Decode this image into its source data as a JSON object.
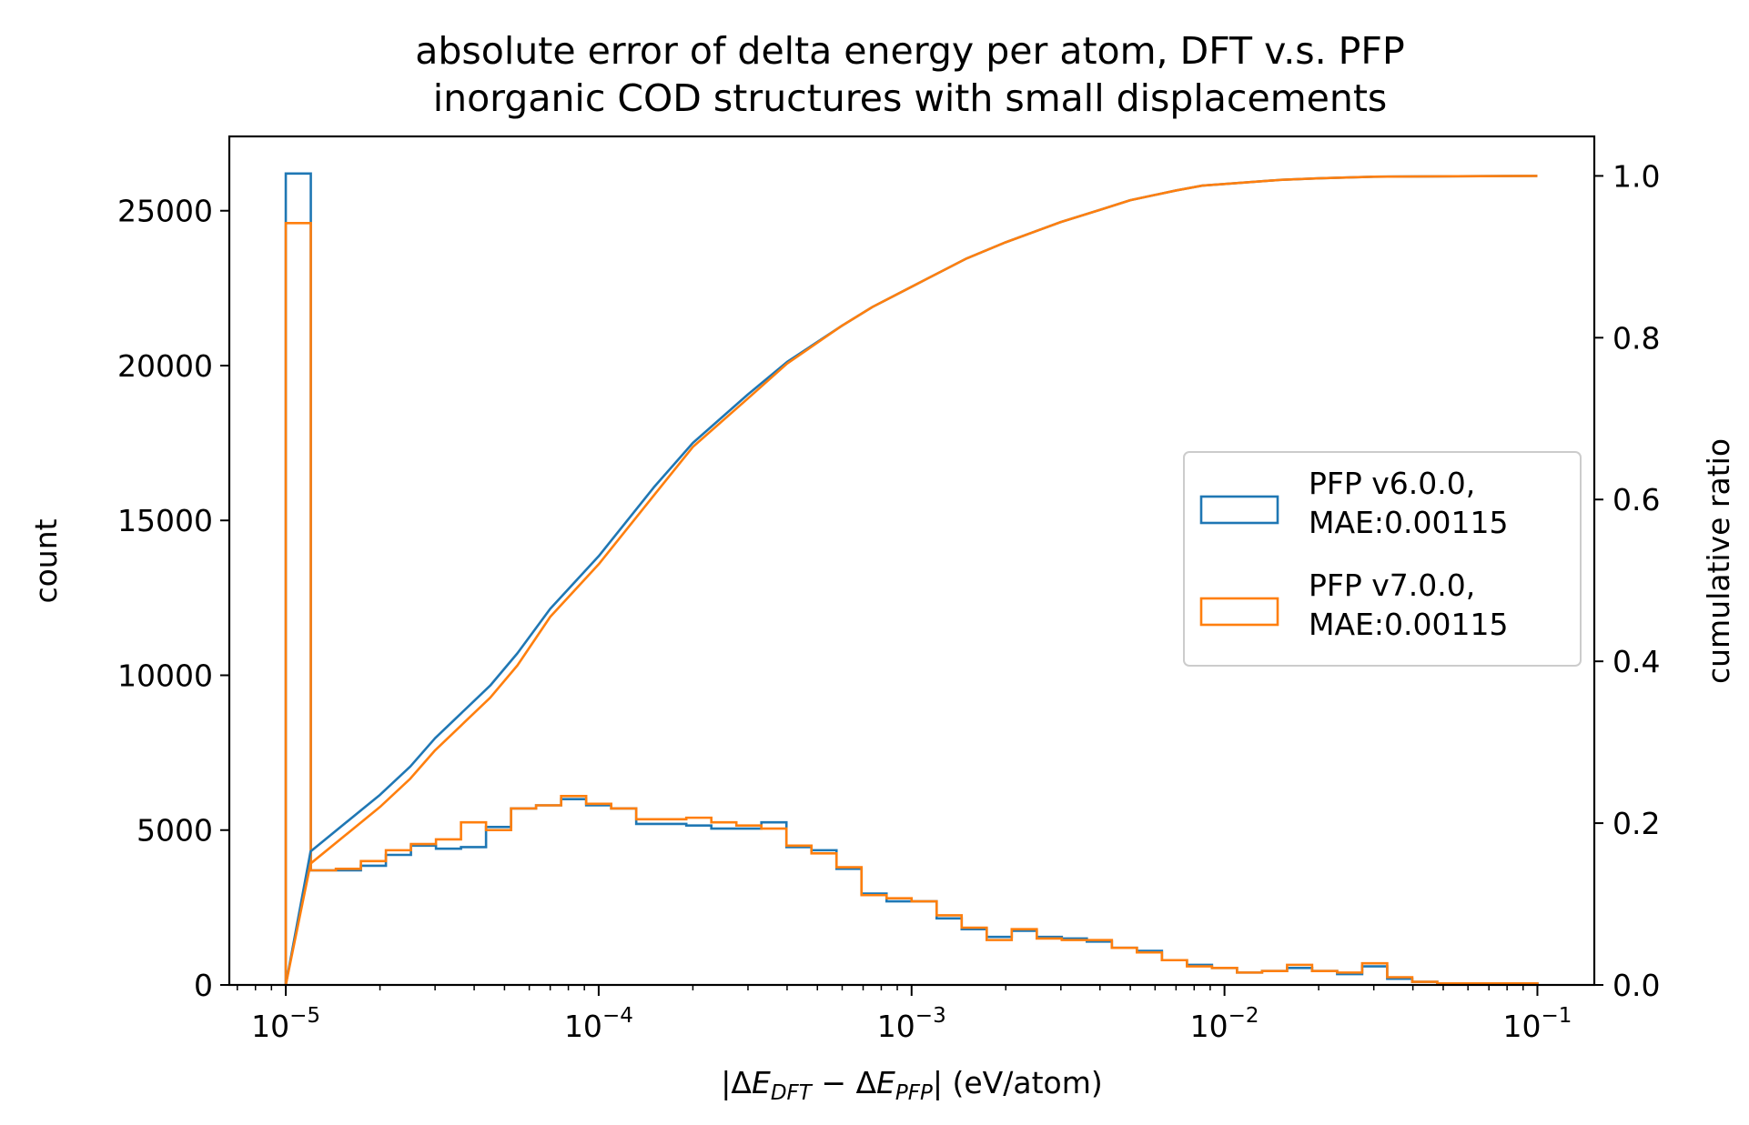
{
  "chart_data": {
    "type": "histogram",
    "title": "absolute error of delta energy per atom, DFT v.s. PFP",
    "subtitle": "inorganic COD structures with small displacements",
    "xlabel": "|ΔE_DFT − ΔE_PFP| (eV/atom)",
    "xlabel_parts": {
      "open": "|Δ",
      "e1": "E",
      "sub1": "DFT",
      "minus": " − Δ",
      "e2": "E",
      "sub2": "PFP",
      "close": "| (eV/atom)"
    },
    "ylabel_left": "count",
    "ylabel_right": "cumulative ratio",
    "xscale": "log",
    "xlim": [
      6.6e-06,
      0.152
    ],
    "ylim_left": [
      0,
      27400
    ],
    "ylim_right": [
      0,
      1.0488
    ],
    "x_ticks": [
      {
        "value": 1e-05,
        "base": "10",
        "exp": "−5"
      },
      {
        "value": 0.0001,
        "base": "10",
        "exp": "−4"
      },
      {
        "value": 0.001,
        "base": "10",
        "exp": "−3"
      },
      {
        "value": 0.01,
        "base": "10",
        "exp": "−2"
      },
      {
        "value": 0.1,
        "base": "10",
        "exp": "−1"
      }
    ],
    "y_ticks_left": [
      {
        "value": 0,
        "label": "0"
      },
      {
        "value": 5000,
        "label": "5000"
      },
      {
        "value": 10000,
        "label": "10000"
      },
      {
        "value": 15000,
        "label": "15000"
      },
      {
        "value": 20000,
        "label": "20000"
      },
      {
        "value": 25000,
        "label": "25000"
      }
    ],
    "y_ticks_right": [
      {
        "value": 0,
        "label": "0.0"
      },
      {
        "value": 0.2,
        "label": "0.2"
      },
      {
        "value": 0.4,
        "label": "0.4"
      },
      {
        "value": 0.6,
        "label": "0.6"
      },
      {
        "value": 0.8,
        "label": "0.8"
      },
      {
        "value": 1.0,
        "label": "1.0"
      }
    ],
    "legend": {
      "location": "center-right",
      "entries": [
        {
          "name": "PFP v6.0.0,",
          "mae": "MAE:0.00115",
          "color": "#1f77b4"
        },
        {
          "name": "PFP v7.0.0,",
          "mae": "MAE:0.00115",
          "color": "#ff7f0e"
        }
      ]
    },
    "bins": {
      "log10_start": -5,
      "log10_end": -1,
      "count": 50
    },
    "series": [
      {
        "name": "PFP v6.0.0",
        "color": "#1f77b4",
        "counts": [
          26200,
          3700,
          3700,
          3850,
          4200,
          4500,
          4400,
          4450,
          5100,
          5700,
          5800,
          6000,
          5800,
          5700,
          5200,
          5200,
          5150,
          5050,
          5050,
          5250,
          4450,
          4350,
          3750,
          2950,
          2700,
          2700,
          2150,
          1800,
          1550,
          1750,
          1550,
          1500,
          1400,
          1200,
          1100,
          800,
          650,
          550,
          400,
          450,
          550,
          450,
          350,
          600,
          200,
          100,
          50,
          50,
          50,
          50
        ],
        "cumulative_x": [
          1e-05,
          1.2e-05,
          2e-05,
          2.5e-05,
          3e-05,
          4.5e-05,
          5.5e-05,
          7e-05,
          0.0001,
          0.00015,
          0.0002,
          0.0003,
          0.0004,
          0.0006,
          0.00075,
          0.001,
          0.0015,
          0.002,
          0.003,
          0.004,
          0.005,
          0.007,
          0.0085,
          0.01,
          0.015,
          0.02,
          0.03,
          0.1
        ],
        "cumulative_y": [
          0.0,
          0.165,
          0.235,
          0.27,
          0.305,
          0.37,
          0.41,
          0.465,
          0.53,
          0.615,
          0.67,
          0.73,
          0.77,
          0.815,
          0.838,
          0.863,
          0.898,
          0.918,
          0.943,
          0.958,
          0.97,
          0.982,
          0.988,
          0.99,
          0.995,
          0.997,
          0.999,
          1.0
        ]
      },
      {
        "name": "PFP v7.0.0",
        "color": "#ff7f0e",
        "counts": [
          24600,
          3700,
          3750,
          4000,
          4350,
          4550,
          4700,
          5250,
          5000,
          5700,
          5800,
          6100,
          5850,
          5700,
          5350,
          5350,
          5400,
          5250,
          5150,
          5050,
          4500,
          4250,
          3800,
          2900,
          2800,
          2700,
          2250,
          1850,
          1450,
          1800,
          1500,
          1450,
          1450,
          1200,
          1050,
          800,
          600,
          550,
          400,
          450,
          650,
          450,
          400,
          700,
          250,
          100,
          50,
          50,
          50,
          50
        ],
        "cumulative_x": [
          1e-05,
          1.2e-05,
          2e-05,
          2.5e-05,
          3e-05,
          4.5e-05,
          5.5e-05,
          7e-05,
          0.0001,
          0.00015,
          0.0002,
          0.0003,
          0.0004,
          0.0006,
          0.00075,
          0.001,
          0.0015,
          0.002,
          0.003,
          0.004,
          0.005,
          0.007,
          0.0085,
          0.01,
          0.015,
          0.02,
          0.03,
          0.1
        ],
        "cumulative_y": [
          0.0,
          0.15,
          0.22,
          0.255,
          0.29,
          0.355,
          0.395,
          0.455,
          0.52,
          0.605,
          0.665,
          0.725,
          0.768,
          0.815,
          0.838,
          0.863,
          0.898,
          0.918,
          0.943,
          0.958,
          0.97,
          0.982,
          0.988,
          0.99,
          0.995,
          0.997,
          0.999,
          1.0
        ]
      }
    ]
  }
}
